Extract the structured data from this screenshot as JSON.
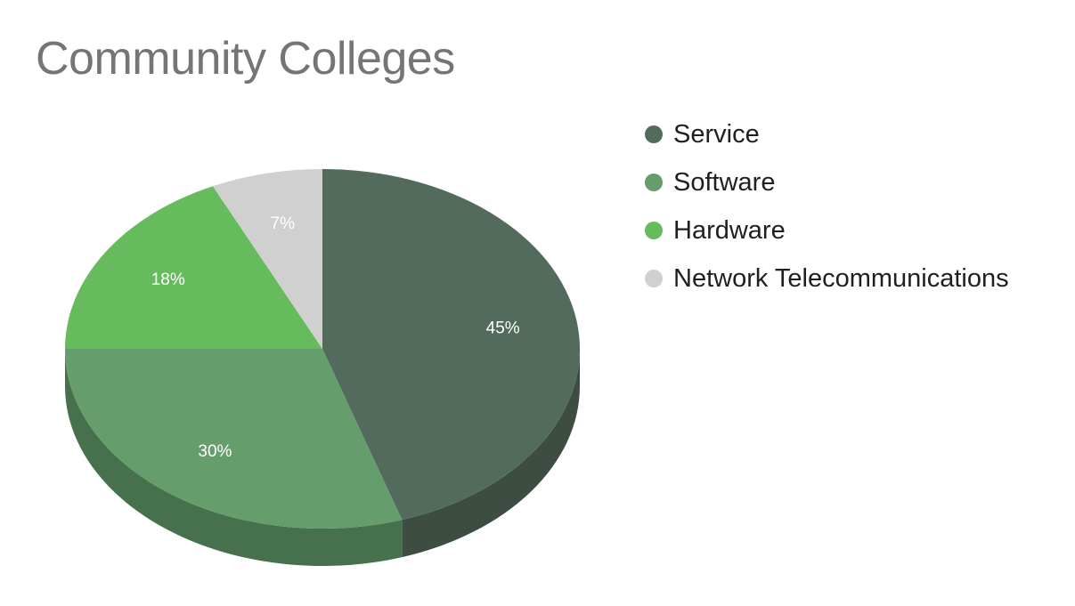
{
  "chart_data": {
    "type": "pie",
    "title": "Community Colleges",
    "three_d": true,
    "legend_position": "right",
    "slices": [
      {
        "name": "Service",
        "value": 45,
        "label": "45%",
        "color": "#536b5c",
        "side_color": "#3d4d42"
      },
      {
        "name": "Software",
        "value": 30,
        "label": "30%",
        "color": "#659e6c",
        "side_color": "#46714c"
      },
      {
        "name": "Hardware",
        "value": 18,
        "label": "18%",
        "color": "#66bb5c",
        "side_color": "#4b8c43"
      },
      {
        "name": "Network Telecommunications",
        "value": 7,
        "label": "7%",
        "color": "#d0d0d0",
        "side_color": "#a8a8a8"
      }
    ]
  }
}
